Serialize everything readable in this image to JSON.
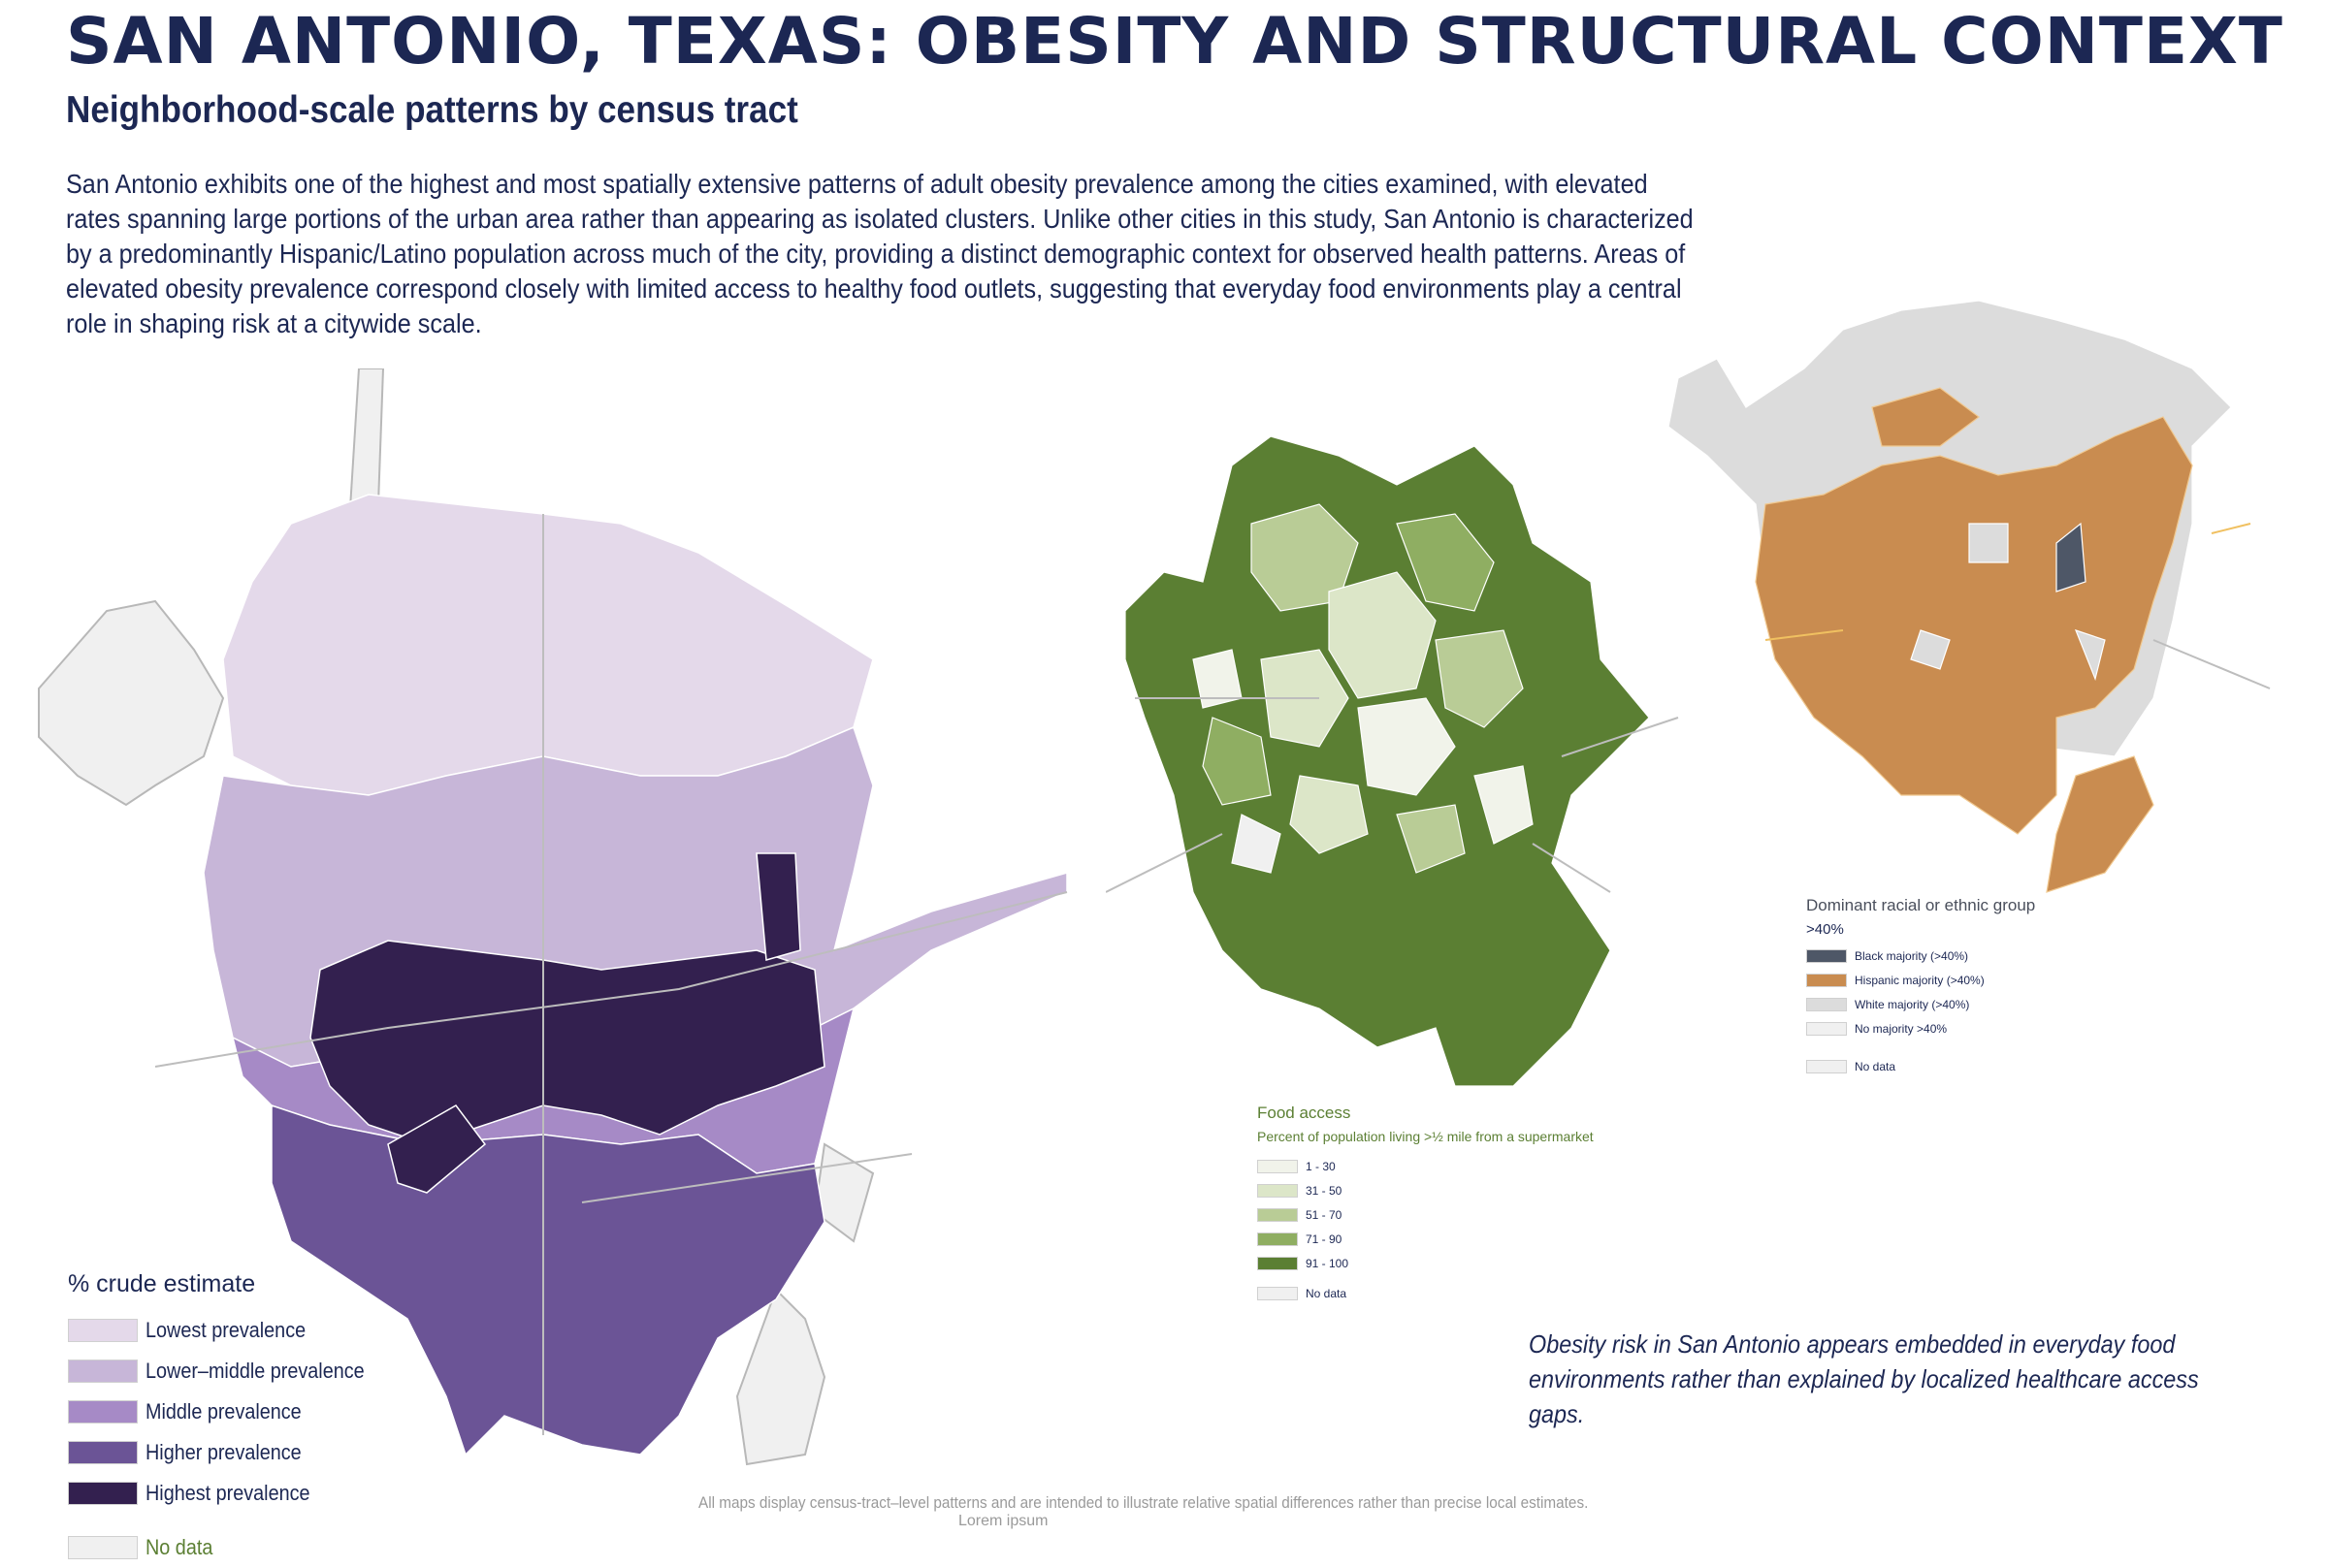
{
  "header": {
    "title": "SAN ANTONIO, TEXAS: OBESITY AND STRUCTURAL CONTEXT",
    "subtitle": "Neighborhood-scale patterns by census tract",
    "intro": "San Antonio exhibits one of the highest and most spatially extensive patterns of adult obesity prevalence among the cities examined, with elevated rates spanning large portions of the urban area rather than appearing as isolated clusters. Unlike other cities in this study, San Antonio is characterized by a predominantly Hispanic/Latino population across much of the city, providing a distinct demographic context for observed health patterns. Areas of elevated obesity prevalence correspond closely with limited access to healthy food outlets, suggesting that everyday food environments play a central role in shaping risk at a citywide scale."
  },
  "obesity_legend": {
    "title": "% crude estimate",
    "items": [
      {
        "label": "Lowest prevalence",
        "color": "#e4d9ea"
      },
      {
        "label": "Lower–middle prevalence",
        "color": "#c7b6d8"
      },
      {
        "label": "Middle prevalence",
        "color": "#a68ac6"
      },
      {
        "label": "Higher prevalence",
        "color": "#6b5496"
      },
      {
        "label": "Highest prevalence",
        "color": "#33204f"
      }
    ],
    "no_data": {
      "label": "No data",
      "color": "#f0f0f0"
    }
  },
  "food_legend": {
    "title": "Food access",
    "subtitle": "Percent of population living >½ mile from a supermarket",
    "items": [
      {
        "label": "1 - 30",
        "color": "#f1f3ea"
      },
      {
        "label": "31 - 50",
        "color": "#dce6c8"
      },
      {
        "label": "51 - 70",
        "color": "#b9cc96"
      },
      {
        "label": "71 - 90",
        "color": "#8fae62"
      },
      {
        "label": "91 - 100",
        "color": "#5b7f33"
      }
    ],
    "no_data": {
      "label": "No data",
      "color": "#f0f0f0"
    }
  },
  "race_legend": {
    "title": "Dominant racial or ethnic group",
    "subtitle": ">40%",
    "items": [
      {
        "label": "Black majority (>40%)",
        "color": "#4e5767"
      },
      {
        "label": "Hispanic majority (>40%)",
        "color": "#c98c50"
      },
      {
        "label": "White majority (>40%)",
        "color": "#dcdcdc"
      },
      {
        "label": "No majority >40%",
        "color": "#f0f0f0"
      }
    ],
    "no_data": {
      "label": "No data",
      "color": "#f0f0f0"
    }
  },
  "callout": "Obesity risk in San Antonio appears embedded in everyday food environments rather than explained by localized healthcare access gaps.",
  "footnote": "All maps display census-tract–level patterns and are intended to illustrate relative spatial differences rather than precise local estimates.",
  "lorem": "Lorem ipsum"
}
